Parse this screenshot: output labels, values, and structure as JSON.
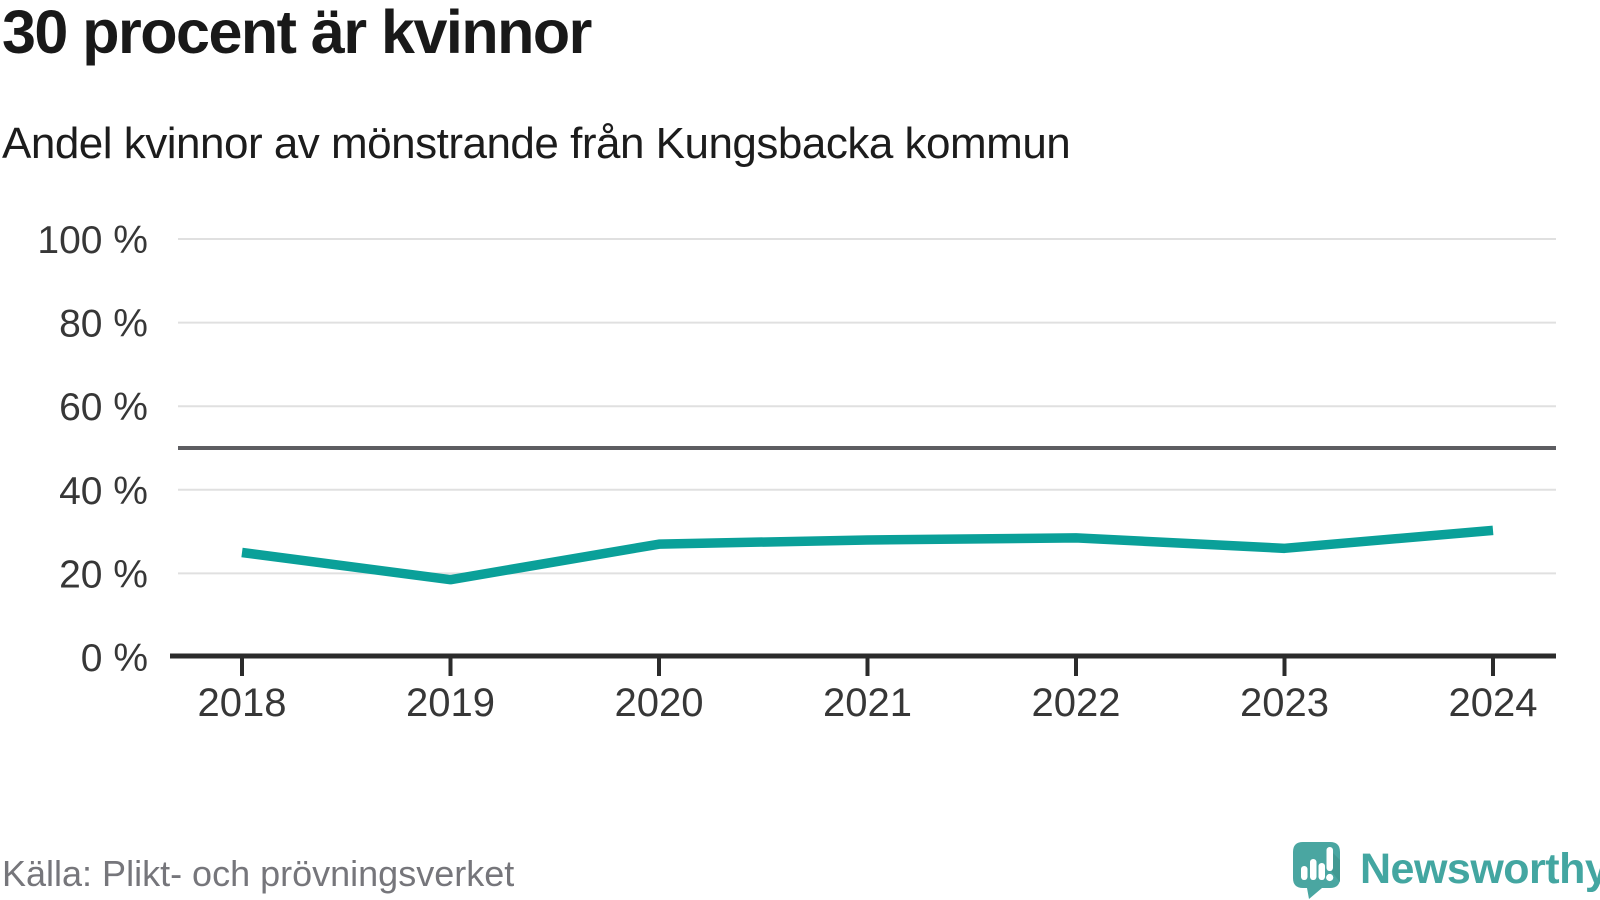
{
  "header": {
    "title": "30 procent är kvinnor",
    "subtitle": "Andel kvinnor av mönstrande från Kungsbacka kommun"
  },
  "footer": {
    "source": "Källa: Plikt- och prövningsverket",
    "brand_name": "Newsworthy",
    "brand_logo_icon": "newsworthy-speech-bubble-with-bar-chart-and-exclamation"
  },
  "colors": {
    "line": "#0aa099",
    "gridline": "#e0e0e0",
    "reference_line": "#5d5d61",
    "axis": "#2b2b2b",
    "tick_label": "#373737",
    "title_text": "#191919",
    "source_text": "#76767b",
    "brand_teal": "#4aa6a1",
    "brand_teal_dark": "#41968f"
  },
  "chart_data": {
    "type": "line",
    "title": "30 procent är kvinnor",
    "subtitle": "Andel kvinnor av mönstrande från Kungsbacka kommun",
    "x": [
      2018,
      2019,
      2020,
      2021,
      2022,
      2023,
      2024
    ],
    "series": [
      {
        "name": "Andel kvinnor av mönstrande",
        "values": [
          25,
          18.5,
          27,
          28,
          28.5,
          26,
          30.3
        ],
        "unit": "%"
      }
    ],
    "xlabel": "",
    "ylabel": "",
    "ylim": [
      0,
      100
    ],
    "yticks": [
      0,
      20,
      40,
      60,
      80,
      100
    ],
    "ytick_format": "{v} %",
    "reference_line_y": 50,
    "grid": "horizontal",
    "legend": "none",
    "source": "Källa: Plikt- och prövningsverket"
  }
}
